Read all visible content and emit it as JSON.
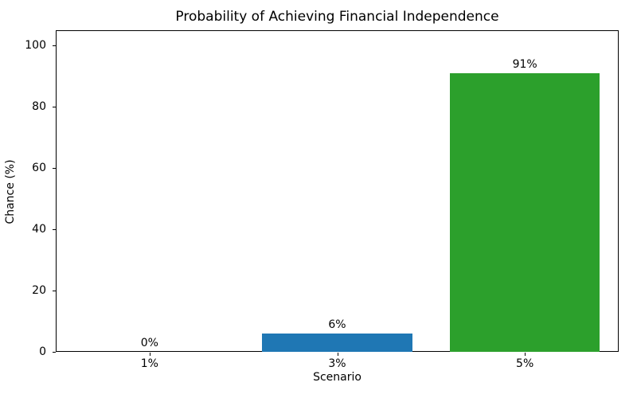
{
  "chart_data": {
    "type": "bar",
    "title": "Probability of Achieving Financial Independence",
    "xlabel": "Scenario",
    "ylabel": "Chance (%)",
    "categories": [
      "1%",
      "3%",
      "5%"
    ],
    "values": [
      0,
      6,
      91
    ],
    "bar_value_labels": [
      "0%",
      "6%",
      "91%"
    ],
    "bar_colors": [
      null,
      "#1f77b4",
      "#2ca02c"
    ],
    "yticks": [
      0,
      20,
      40,
      60,
      80,
      100
    ],
    "ylim": [
      0,
      105
    ],
    "grid": false,
    "legend_position": "none",
    "background_color": "#ffffff",
    "frame": "full-box"
  }
}
